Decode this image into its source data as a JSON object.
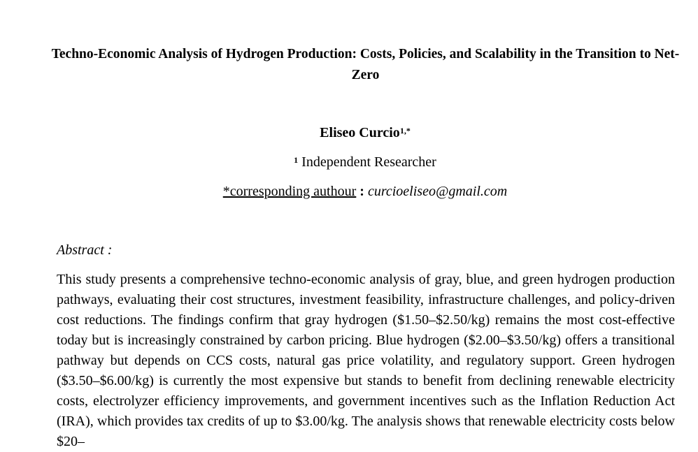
{
  "paper": {
    "title": "Techno-Economic Analysis of Hydrogen Production: Costs, Policies, and Scalability in the Transition to Net-Zero",
    "author": {
      "name": "Eliseo Curcio",
      "superscript": "1,*"
    },
    "affiliation": {
      "superscript": "1",
      "text": "Independent Researcher"
    },
    "correspondence": {
      "label": "*corresponding authour",
      "separator": ":",
      "email": "curcioeliseo@gmail.com"
    },
    "abstract": {
      "label": "Abstract :",
      "text": "This study presents a comprehensive techno-economic analysis of gray, blue, and green hydrogen production pathways, evaluating their cost structures, investment feasibility, infrastructure challenges, and policy-driven cost reductions. The findings confirm that gray hydrogen ($1.50–$2.50/kg) remains the most cost-effective today but is increasingly constrained by carbon pricing. Blue hydrogen ($2.00–$3.50/kg) offers a transitional pathway but depends on CCS costs, natural gas price volatility, and regulatory support. Green hydrogen ($3.50–$6.00/kg) is currently the most expensive but stands to benefit from declining renewable electricity costs, electrolyzer efficiency improvements, and government incentives such as the Inflation Reduction Act (IRA), which provides tax credits of up to $3.00/kg. The analysis shows that renewable electricity costs below $20–"
    }
  }
}
